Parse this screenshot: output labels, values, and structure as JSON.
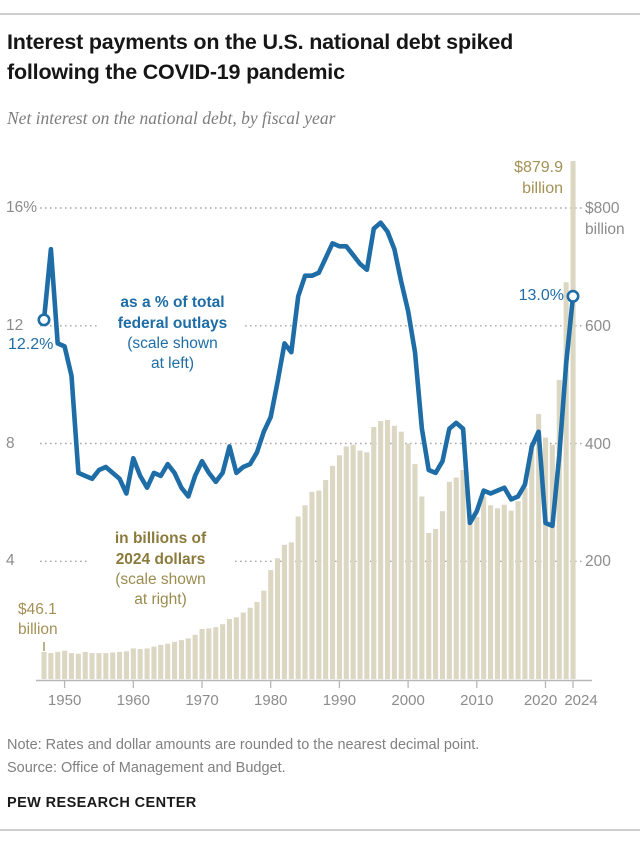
{
  "header": {
    "title_l1": "Interest payments on the U.S. national debt spiked",
    "title_l2": "following the COVID-19 pandemic",
    "subtitle": "Net interest on the national debt, by fiscal year"
  },
  "footer": {
    "note": "Note: Rates and dollar amounts are rounded to the nearest decimal point.",
    "source": "Source: Office of Management and Budget.",
    "brand": "PEW RESEARCH CENTER"
  },
  "colors": {
    "line_blue": "#1e6da6",
    "bar_tan": "#dcd7c3",
    "olive_bold": "#8a7a3c",
    "olive_light": "#a39155",
    "axis_gray": "#8c8c8c",
    "grid_gray": "#a8a8a8",
    "axis_line": "#b7b7b7"
  },
  "chart_data": {
    "type": "combo",
    "start_year": 1947,
    "end_year": 2024,
    "grid": "dotted-horizontal",
    "x_ticks": [
      {
        "year": 1950,
        "label": "1950"
      },
      {
        "year": 1960,
        "label": "1960"
      },
      {
        "year": 1970,
        "label": "1970"
      },
      {
        "year": 1980,
        "label": "1980"
      },
      {
        "year": 1990,
        "label": "1990"
      },
      {
        "year": 2000,
        "label": "2000"
      },
      {
        "year": 2010,
        "label": "2010"
      },
      {
        "year": 2020,
        "label": "2020"
      },
      {
        "year": 2024,
        "label": "2024"
      }
    ],
    "left_axis": {
      "unit": "% of outlays",
      "ylim": [
        0,
        17.6
      ],
      "ticks": [
        {
          "v": 16,
          "label": "16%"
        },
        {
          "v": 12,
          "label": "12"
        },
        {
          "v": 8,
          "label": "8"
        },
        {
          "v": 4,
          "label": "4"
        }
      ]
    },
    "right_axis": {
      "unit": "billions of 2024 dollars",
      "ylim": [
        0,
        880
      ],
      "ticks": [
        {
          "v": 800,
          "l1": "$800",
          "l2": "billion"
        },
        {
          "v": 600,
          "l1": "600",
          "l2": ""
        },
        {
          "v": 400,
          "l1": "400",
          "l2": ""
        },
        {
          "v": 200,
          "l1": "200",
          "l2": ""
        }
      ]
    },
    "series": [
      {
        "name": "as a % of total federal outlays",
        "type": "line",
        "axis": "left",
        "values": [
          12.2,
          14.6,
          11.4,
          11.3,
          10.3,
          7.0,
          6.9,
          6.8,
          7.1,
          7.2,
          7.0,
          6.8,
          6.3,
          7.5,
          6.9,
          6.5,
          7.0,
          6.9,
          7.3,
          7.0,
          6.5,
          6.2,
          6.9,
          7.4,
          7.0,
          6.7,
          7.0,
          7.9,
          7.0,
          7.2,
          7.3,
          7.7,
          8.4,
          8.9,
          10.1,
          11.4,
          11.1,
          13.0,
          13.7,
          13.7,
          13.8,
          14.3,
          14.8,
          14.7,
          14.7,
          14.4,
          14.1,
          13.9,
          15.3,
          15.5,
          15.2,
          14.6,
          13.5,
          12.5,
          11.1,
          8.5,
          7.1,
          7.0,
          7.4,
          8.5,
          8.7,
          8.5,
          5.3,
          5.7,
          6.4,
          6.3,
          6.4,
          6.5,
          6.1,
          6.2,
          6.6,
          7.9,
          8.4,
          5.3,
          5.2,
          7.6,
          10.7,
          13.0
        ]
      },
      {
        "name": "in billions of 2024 dollars",
        "type": "bar",
        "axis": "right",
        "values": [
          46.1,
          44,
          46,
          48,
          44,
          43,
          46,
          44,
          44,
          44,
          45,
          46,
          47,
          52,
          51,
          52,
          55,
          58,
          60,
          63,
          66,
          69,
          75,
          85,
          86,
          88,
          93,
          102,
          105,
          113,
          121,
          131,
          150,
          185,
          205,
          228,
          232,
          276,
          295,
          318,
          320,
          338,
          362,
          380,
          395,
          398,
          388,
          385,
          428,
          438,
          440,
          430,
          420,
          400,
          365,
          310,
          248,
          255,
          285,
          335,
          342,
          355,
          265,
          275,
          310,
          295,
          290,
          296,
          286,
          302,
          325,
          395,
          450,
          410,
          398,
          508,
          674,
          879.9
        ]
      }
    ],
    "annotations": {
      "start_pct": "12.2%",
      "end_pct": "13.0%",
      "start_dollar": {
        "l1": "$46.1",
        "l2": "billion"
      },
      "end_dollar": {
        "l1": "$879.9",
        "l2": "billion"
      },
      "line_note": {
        "l1": "as a % of total",
        "l2": "federal outlays",
        "l3": "(scale shown",
        "l4": "at left)"
      },
      "bar_note": {
        "l1": "in billions of",
        "l2": "2024 dollars",
        "l3": "(scale shown",
        "l4": "at right)"
      }
    }
  }
}
